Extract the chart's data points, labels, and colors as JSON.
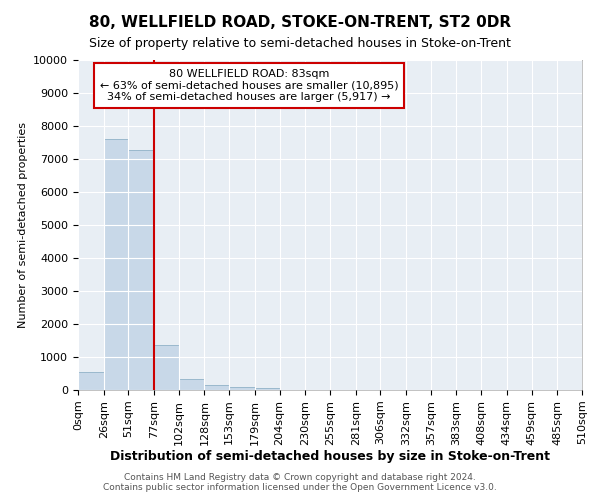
{
  "title": "80, WELLFIELD ROAD, STOKE-ON-TRENT, ST2 0DR",
  "subtitle": "Size of property relative to semi-detached houses in Stoke-on-Trent",
  "xlabel": "Distribution of semi-detached houses by size in Stoke-on-Trent",
  "ylabel": "Number of semi-detached properties",
  "footer1": "Contains HM Land Registry data © Crown copyright and database right 2024.",
  "footer2": "Contains public sector information licensed under the Open Government Licence v3.0.",
  "bin_labels": [
    "0sqm",
    "26sqm",
    "51sqm",
    "77sqm",
    "102sqm",
    "128sqm",
    "153sqm",
    "179sqm",
    "204sqm",
    "230sqm",
    "255sqm",
    "281sqm",
    "306sqm",
    "332sqm",
    "357sqm",
    "383sqm",
    "408sqm",
    "434sqm",
    "459sqm",
    "485sqm",
    "510sqm"
  ],
  "bar_heights": [
    550,
    7620,
    7280,
    1350,
    320,
    140,
    100,
    60,
    0,
    0,
    0,
    0,
    0,
    0,
    0,
    0,
    0,
    0,
    0,
    0
  ],
  "bar_color": "#c8d8e8",
  "bar_edge_color": "#9ab8cc",
  "plot_bg_color": "#e8eef4",
  "grid_color": "#ffffff",
  "property_line_x": 77,
  "property_line_color": "#cc0000",
  "ann_line1": "80 WELLFIELD ROAD: 83sqm",
  "ann_line2": "← 63% of semi-detached houses are smaller (10,895)",
  "ann_line3": "34% of semi-detached houses are larger (5,917) →",
  "annotation_box_color": "#ffffff",
  "annotation_box_edge": "#cc0000",
  "ylim": [
    0,
    10000
  ],
  "yticks": [
    0,
    1000,
    2000,
    3000,
    4000,
    5000,
    6000,
    7000,
    8000,
    9000,
    10000
  ],
  "bin_edges": [
    0,
    26,
    51,
    77,
    102,
    128,
    153,
    179,
    204,
    230,
    255,
    281,
    306,
    332,
    357,
    383,
    408,
    434,
    459,
    485,
    510
  ],
  "title_fontsize": 11,
  "subtitle_fontsize": 9,
  "xlabel_fontsize": 9,
  "ylabel_fontsize": 8,
  "tick_fontsize": 8,
  "footer_fontsize": 6.5,
  "ann_fontsize": 8
}
